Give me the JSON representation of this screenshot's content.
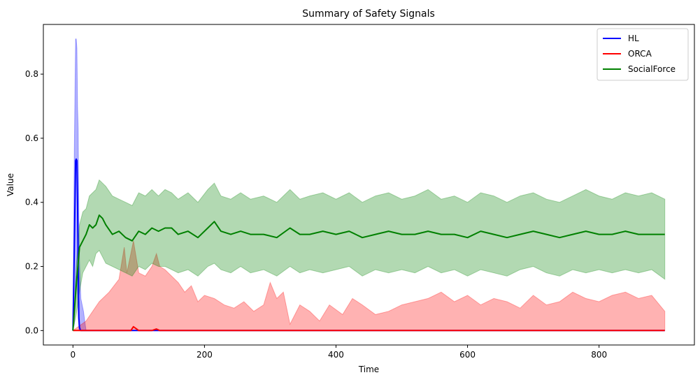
{
  "chart_data": {
    "type": "line",
    "title": "Summary of Safety Signals",
    "xlabel": "Time",
    "ylabel": "Value",
    "xlim": [
      -45,
      945
    ],
    "ylim": [
      -0.045,
      0.955
    ],
    "xticks": [
      0,
      200,
      400,
      600,
      800
    ],
    "yticks": [
      0.0,
      0.2,
      0.4,
      0.6,
      0.8
    ],
    "legend_position": "top-right",
    "grid": false,
    "series": [
      {
        "name": "HL",
        "color": "#0000ff",
        "band_color": "#0000ff",
        "x": [
          0,
          2,
          4,
          5,
          6,
          7,
          8,
          9,
          10,
          11,
          12,
          14,
          16,
          18,
          20,
          900
        ],
        "mean": [
          0,
          0.25,
          0.53,
          0.535,
          0.53,
          0.4,
          0.2,
          0.04,
          0.01,
          0.003,
          0,
          0,
          0,
          0,
          0,
          0
        ],
        "lower": [
          0,
          0.02,
          0.15,
          0.17,
          0.16,
          0.1,
          0.04,
          0.005,
          0,
          0,
          0,
          0,
          0,
          0,
          0,
          0
        ],
        "upper": [
          0,
          0.55,
          0.91,
          0.91,
          0.88,
          0.7,
          0.63,
          0.35,
          0.22,
          0.15,
          0.1,
          0.08,
          0.06,
          0.03,
          0,
          0
        ]
      },
      {
        "name": "ORCA",
        "color": "#ff0000",
        "band_color": "#ff0000",
        "x": [
          0,
          20,
          30,
          40,
          55,
          70,
          78,
          82,
          88,
          92,
          100,
          110,
          120,
          127,
          132,
          140,
          150,
          160,
          170,
          180,
          190,
          200,
          215,
          230,
          245,
          260,
          275,
          290,
          300,
          310,
          320,
          330,
          345,
          360,
          375,
          390,
          410,
          425,
          440,
          460,
          480,
          500,
          520,
          540,
          560,
          580,
          600,
          620,
          640,
          660,
          680,
          700,
          720,
          740,
          760,
          780,
          800,
          820,
          840,
          860,
          880,
          900
        ],
        "mean": [
          0,
          0,
          0,
          0,
          0,
          0,
          0,
          0,
          0,
          0.012,
          0,
          0,
          0,
          0.005,
          0,
          0,
          0,
          0,
          0,
          0,
          0,
          0,
          0,
          0,
          0,
          0,
          0,
          0,
          0,
          0,
          0,
          0,
          0,
          0,
          0,
          0,
          0,
          0,
          0,
          0,
          0,
          0,
          0,
          0,
          0,
          0,
          0,
          0,
          0,
          0,
          0,
          0,
          0,
          0,
          0,
          0,
          0,
          0,
          0,
          0,
          0,
          0
        ],
        "lower": [
          0,
          0,
          0,
          0,
          0,
          0,
          0,
          0,
          0,
          0,
          0,
          0,
          0,
          0,
          0,
          0,
          0,
          0,
          0,
          0,
          0,
          0,
          0,
          0,
          0,
          0,
          0,
          0,
          0,
          0,
          0,
          0,
          0,
          0,
          0,
          0,
          0,
          0,
          0,
          0,
          0,
          0,
          0,
          0,
          0,
          0,
          0,
          0,
          0,
          0,
          0,
          0,
          0,
          0,
          0,
          0,
          0,
          0,
          0,
          0,
          0,
          0
        ],
        "upper": [
          0,
          0.03,
          0.06,
          0.09,
          0.12,
          0.16,
          0.26,
          0.18,
          0.24,
          0.28,
          0.18,
          0.17,
          0.2,
          0.24,
          0.2,
          0.19,
          0.17,
          0.15,
          0.12,
          0.14,
          0.09,
          0.11,
          0.1,
          0.08,
          0.07,
          0.09,
          0.06,
          0.08,
          0.15,
          0.1,
          0.12,
          0.02,
          0.08,
          0.06,
          0.03,
          0.08,
          0.05,
          0.1,
          0.08,
          0.05,
          0.06,
          0.08,
          0.09,
          0.1,
          0.12,
          0.09,
          0.11,
          0.08,
          0.1,
          0.09,
          0.07,
          0.11,
          0.08,
          0.09,
          0.12,
          0.1,
          0.09,
          0.11,
          0.12,
          0.1,
          0.11,
          0.06
        ]
      },
      {
        "name": "SocialForce",
        "color": "#008000",
        "band_color": "#008000",
        "x": [
          0,
          5,
          10,
          15,
          20,
          25,
          30,
          35,
          40,
          45,
          50,
          60,
          70,
          80,
          90,
          100,
          110,
          120,
          130,
          140,
          150,
          160,
          175,
          190,
          205,
          215,
          225,
          240,
          255,
          270,
          290,
          310,
          330,
          345,
          360,
          380,
          400,
          420,
          440,
          460,
          480,
          500,
          520,
          540,
          560,
          580,
          600,
          620,
          640,
          660,
          680,
          700,
          720,
          740,
          760,
          780,
          800,
          820,
          840,
          860,
          880,
          900
        ],
        "mean": [
          0,
          0.14,
          0.26,
          0.28,
          0.3,
          0.33,
          0.32,
          0.33,
          0.36,
          0.35,
          0.33,
          0.3,
          0.31,
          0.29,
          0.28,
          0.31,
          0.3,
          0.32,
          0.31,
          0.32,
          0.32,
          0.3,
          0.31,
          0.29,
          0.32,
          0.34,
          0.31,
          0.3,
          0.31,
          0.3,
          0.3,
          0.29,
          0.32,
          0.3,
          0.3,
          0.31,
          0.3,
          0.31,
          0.29,
          0.3,
          0.31,
          0.3,
          0.3,
          0.31,
          0.3,
          0.3,
          0.29,
          0.31,
          0.3,
          0.29,
          0.3,
          0.31,
          0.3,
          0.29,
          0.3,
          0.31,
          0.3,
          0.3,
          0.31,
          0.3,
          0.3,
          0.3
        ],
        "lower": [
          0,
          0.05,
          0.12,
          0.18,
          0.2,
          0.22,
          0.2,
          0.24,
          0.25,
          0.23,
          0.21,
          0.2,
          0.19,
          0.18,
          0.17,
          0.2,
          0.19,
          0.21,
          0.2,
          0.2,
          0.19,
          0.18,
          0.19,
          0.17,
          0.2,
          0.21,
          0.19,
          0.18,
          0.2,
          0.18,
          0.19,
          0.17,
          0.2,
          0.18,
          0.19,
          0.18,
          0.19,
          0.2,
          0.17,
          0.19,
          0.18,
          0.19,
          0.18,
          0.2,
          0.18,
          0.19,
          0.17,
          0.19,
          0.18,
          0.17,
          0.19,
          0.2,
          0.18,
          0.17,
          0.19,
          0.18,
          0.19,
          0.18,
          0.19,
          0.18,
          0.19,
          0.16
        ],
        "upper": [
          0,
          0.2,
          0.33,
          0.37,
          0.38,
          0.42,
          0.43,
          0.44,
          0.47,
          0.46,
          0.45,
          0.42,
          0.41,
          0.4,
          0.39,
          0.43,
          0.42,
          0.44,
          0.42,
          0.44,
          0.43,
          0.41,
          0.43,
          0.4,
          0.44,
          0.46,
          0.42,
          0.41,
          0.43,
          0.41,
          0.42,
          0.4,
          0.44,
          0.41,
          0.42,
          0.43,
          0.41,
          0.43,
          0.4,
          0.42,
          0.43,
          0.41,
          0.42,
          0.44,
          0.41,
          0.42,
          0.4,
          0.43,
          0.42,
          0.4,
          0.42,
          0.43,
          0.41,
          0.4,
          0.42,
          0.44,
          0.42,
          0.41,
          0.43,
          0.42,
          0.43,
          0.41
        ]
      }
    ]
  }
}
